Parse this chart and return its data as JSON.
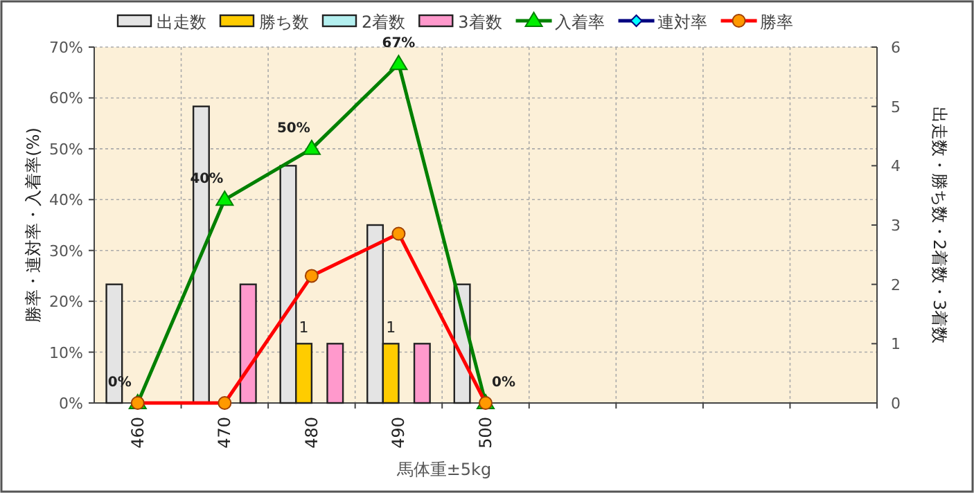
{
  "chart_data": {
    "type": "bar",
    "xlabel": "馬体重±5kg",
    "ylabel": "勝率・連対率・入着率(%)",
    "y2label": "出走数・勝ち数・2着数・3着数",
    "categories": [
      "460",
      "470",
      "480",
      "490",
      "500",
      null,
      null,
      null,
      null
    ],
    "series": [
      {
        "name": "出走数",
        "axis": "y2",
        "color": "#e4e4e4",
        "values": [
          2,
          5,
          4,
          3,
          2,
          null,
          null,
          null,
          null
        ]
      },
      {
        "name": "勝ち数",
        "axis": "y2",
        "color": "#ffcc00",
        "values": [
          0,
          0,
          1,
          1,
          0,
          null,
          null,
          null,
          null
        ],
        "value_labels": [
          null,
          null,
          "1",
          "1",
          null,
          null,
          null,
          null,
          null
        ]
      },
      {
        "name": "2着数",
        "axis": "y2",
        "color": "#b4f0f0",
        "values": [
          0,
          0,
          0,
          0,
          0,
          null,
          null,
          null,
          null
        ]
      },
      {
        "name": "3着数",
        "axis": "y2",
        "color": "#ff99cc",
        "values": [
          0,
          2,
          1,
          1,
          0,
          null,
          null,
          null,
          null
        ]
      },
      {
        "name": "入着率",
        "type": "line",
        "color": "#008000",
        "marker": "triangle",
        "values": [
          0,
          40,
          50,
          66.7,
          0,
          null,
          null,
          null,
          null
        ],
        "value_labels": [
          "0%",
          "40%",
          "50%",
          "67%",
          "0%",
          null,
          null,
          null,
          null
        ]
      },
      {
        "name": "連対率",
        "type": "line",
        "color": "#000080",
        "marker": "diamond",
        "values": [
          null,
          null,
          null,
          null,
          null,
          null,
          null,
          null,
          null
        ]
      },
      {
        "name": "勝率",
        "type": "line",
        "color": "#ff0000",
        "marker": "circle",
        "values": [
          0,
          0,
          25,
          33.3,
          0,
          null,
          null,
          null,
          null
        ]
      }
    ],
    "ylim": [
      0,
      70
    ],
    "yticks": [
      {
        "value": 0,
        "label": "0%"
      },
      {
        "value": 10,
        "label": "10%"
      },
      {
        "value": 20,
        "label": "20%"
      },
      {
        "value": 30,
        "label": "30%"
      },
      {
        "value": 40,
        "label": "40%"
      },
      {
        "value": 50,
        "label": "50%"
      },
      {
        "value": 60,
        "label": "60%"
      },
      {
        "value": 70,
        "label": "70%"
      }
    ],
    "y2lim": [
      0,
      6
    ],
    "y2ticks": [
      0,
      1,
      2,
      3,
      4,
      5,
      6
    ],
    "grid": true,
    "legend": "top"
  }
}
